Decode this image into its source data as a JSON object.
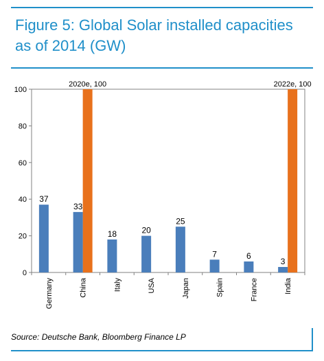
{
  "chart_data": {
    "type": "bar",
    "title": "Figure 5: Global Solar installed capacities as of 2014 (GW)",
    "categories": [
      "Germany",
      "China",
      "Italy",
      "USA",
      "Japan",
      "Spain",
      "France",
      "India"
    ],
    "values": [
      37,
      33,
      18,
      20,
      25,
      7,
      6,
      3
    ],
    "value_labels": [
      "37",
      "33",
      "18",
      "20",
      "25",
      "7",
      "6",
      "3"
    ],
    "projections": [
      {
        "category": "China",
        "value": 100,
        "label": "2020e, 100"
      },
      {
        "category": "India",
        "value": 100,
        "label": "2022e, 100"
      }
    ],
    "ylim": [
      0,
      100
    ],
    "yticks": [
      0,
      20,
      40,
      60,
      80,
      100
    ],
    "grid": false,
    "colors": {
      "actual": "#4a7ebb",
      "projection": "#e8711c",
      "accent": "#1f8fc9"
    }
  },
  "source": "Source: Deutsche Bank, Bloomberg Finance LP"
}
